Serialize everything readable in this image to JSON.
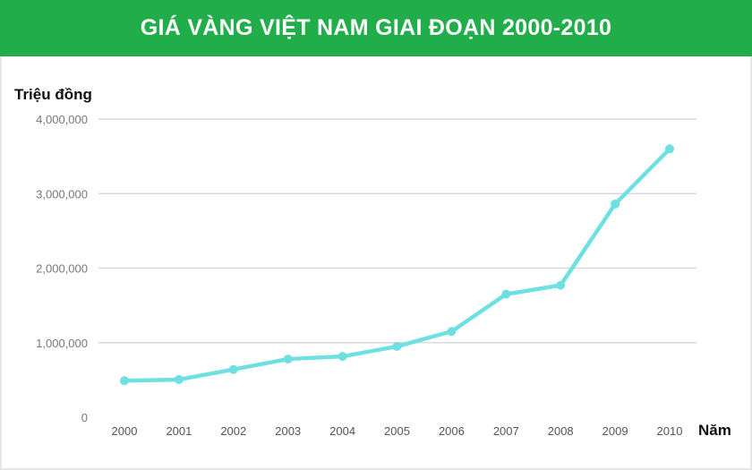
{
  "chart_data": {
    "type": "line",
    "title": "GIÁ VÀNG VIỆT NAM GIAI ĐOẠN 2000-2010",
    "xlabel": "Năm",
    "ylabel": "Triệu đồng",
    "categories": [
      "2000",
      "2001",
      "2002",
      "2003",
      "2004",
      "2005",
      "2006",
      "2007",
      "2008",
      "2009",
      "2010"
    ],
    "values": [
      490000,
      505000,
      640000,
      780000,
      815000,
      950000,
      1150000,
      1650000,
      1770000,
      2860000,
      3600000
    ],
    "ylim": [
      0,
      4000000
    ],
    "yticks": [
      0,
      1000000,
      2000000,
      3000000,
      4000000
    ],
    "ytick_labels": [
      "0",
      "1,000,000",
      "2,000,000",
      "3,000,000",
      "4,000,000"
    ],
    "grid": true,
    "colors": {
      "line": "#6fe0e2",
      "header": "#22ad4b",
      "grid": "#d9d9d9"
    }
  }
}
